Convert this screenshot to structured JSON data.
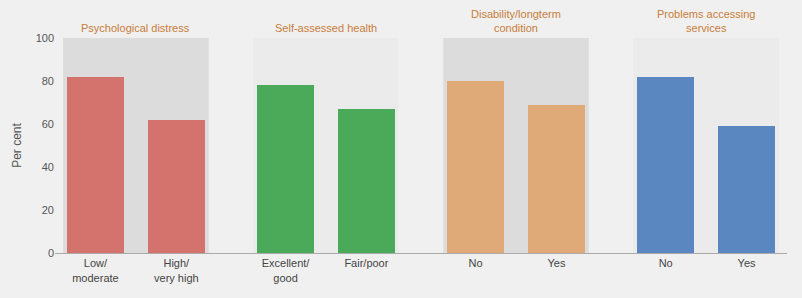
{
  "chart_data": {
    "type": "bar",
    "categories": [
      "Low/\nmoderate",
      "High/\nvery high",
      "Excellent/\ngood",
      "Fair/poor",
      "No",
      "Yes",
      "No",
      "Yes"
    ],
    "values": [
      82,
      62,
      78,
      67,
      80,
      69,
      82,
      59
    ],
    "colors": [
      "#d4736e",
      "#d4736e",
      "#4aaa5a",
      "#4aaa5a",
      "#dfa978",
      "#dfa978",
      "#5a87bf",
      "#5a87bf"
    ],
    "annotations": [
      "Psychological distress",
      "Self-assessed health",
      "Disability/longterm\ncondition",
      "Problems accessing\nservices"
    ],
    "ylabel": "Per cent",
    "ylim": [
      0,
      100
    ],
    "yticks": [
      0,
      20,
      40,
      60,
      80,
      100
    ],
    "grid": false
  }
}
